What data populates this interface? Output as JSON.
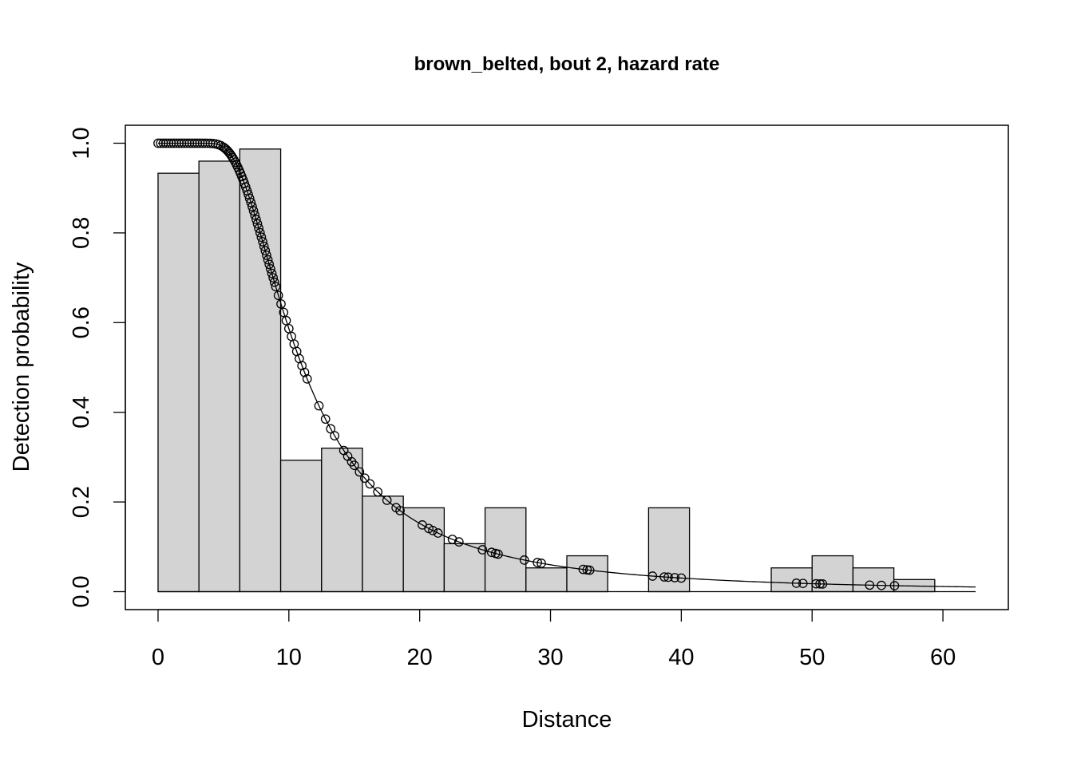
{
  "chart_data": {
    "type": "histogram-with-fitted-curve",
    "title": "brown_belted, bout 2, hazard rate",
    "xlabel": "Distance",
    "ylabel": "Detection probability",
    "xlim": [
      -2.5,
      65
    ],
    "ylim": [
      -0.04,
      1.04
    ],
    "x_ticks": [
      0,
      10,
      20,
      30,
      40,
      50,
      60
    ],
    "x_tick_labels": [
      "0",
      "10",
      "20",
      "30",
      "40",
      "50",
      "60"
    ],
    "y_ticks": [
      0.0,
      0.2,
      0.4,
      0.6,
      0.8,
      1.0
    ],
    "y_tick_labels": [
      "0.0",
      "0.2",
      "0.4",
      "0.6",
      "0.8",
      "1.0"
    ],
    "histogram": {
      "bin_edges": [
        0,
        3.125,
        6.25,
        9.375,
        12.5,
        15.625,
        18.75,
        21.875,
        25,
        28.125,
        31.25,
        34.375,
        37.5,
        40.625,
        43.75,
        46.875,
        50,
        53.125,
        56.25,
        59.375,
        62.5
      ],
      "values": [
        0.933,
        0.96,
        0.987,
        0.293,
        0.32,
        0.213,
        0.187,
        0.107,
        0.187,
        0.053,
        0.08,
        0.0,
        0.187,
        0.0,
        0.0,
        0.053,
        0.08,
        0.053,
        0.027,
        0.0
      ],
      "fill": "#d3d3d3"
    },
    "fitted_curve": {
      "model": "hazard rate",
      "sigma": 9.5,
      "b": 2.42,
      "x_range": [
        0,
        62.5
      ]
    },
    "observations": [
      0.0,
      0.2,
      0.4,
      0.6,
      0.8,
      1.0,
      1.2,
      1.4,
      1.6,
      1.8,
      2.0,
      2.2,
      2.4,
      2.6,
      2.8,
      3.0,
      3.2,
      3.4,
      3.6,
      3.8,
      4.0,
      4.2,
      4.4,
      4.6,
      4.8,
      5.0,
      5.1,
      5.2,
      5.3,
      5.4,
      5.5,
      5.6,
      5.7,
      5.8,
      5.9,
      6.0,
      6.1,
      6.2,
      6.3,
      6.4,
      6.5,
      6.6,
      6.7,
      6.8,
      6.9,
      7.0,
      7.1,
      7.2,
      7.3,
      7.4,
      7.5,
      7.6,
      7.7,
      7.8,
      7.9,
      8.0,
      8.1,
      8.2,
      8.3,
      8.4,
      8.5,
      8.6,
      8.7,
      8.8,
      8.9,
      9.0,
      9.2,
      9.4,
      9.6,
      9.8,
      10.0,
      10.2,
      10.4,
      10.6,
      10.8,
      11.0,
      11.2,
      11.4,
      12.3,
      12.8,
      13.2,
      13.5,
      14.2,
      14.5,
      14.8,
      15.0,
      15.4,
      15.8,
      16.2,
      16.8,
      17.5,
      18.2,
      18.5,
      20.2,
      20.7,
      21.0,
      21.4,
      22.5,
      23.0,
      24.8,
      25.5,
      25.8,
      26.0,
      28.0,
      29.0,
      29.3,
      32.5,
      32.8,
      33.0,
      37.8,
      38.7,
      39.0,
      39.5,
      40.0,
      48.8,
      49.3,
      50.3,
      50.6,
      50.8,
      54.4,
      55.3,
      56.3
    ]
  }
}
